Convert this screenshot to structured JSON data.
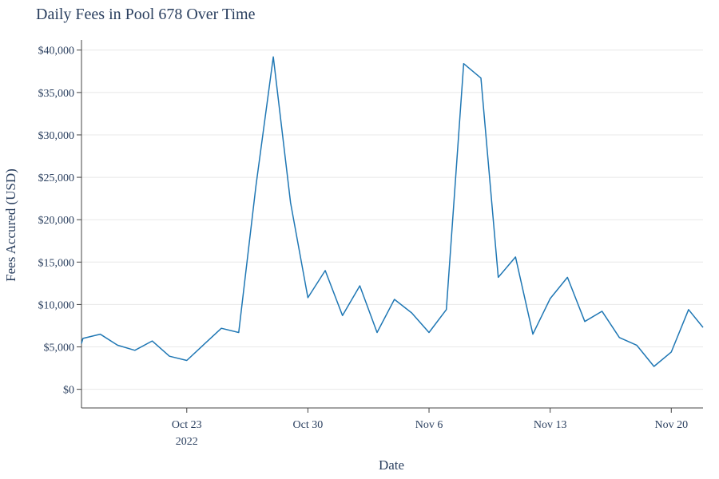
{
  "chart_data": {
    "type": "line",
    "title": "Daily Fees in Pool 678 Over Time",
    "xlabel": "Date",
    "ylabel": "Fees Accured (USD)",
    "x": [
      "2022-10-17",
      "2022-10-18",
      "2022-10-19",
      "2022-10-20",
      "2022-10-21",
      "2022-10-22",
      "2022-10-23",
      "2022-10-24",
      "2022-10-25",
      "2022-10-26",
      "2022-10-27",
      "2022-10-28",
      "2022-10-29",
      "2022-10-30",
      "2022-10-31",
      "2022-11-01",
      "2022-11-02",
      "2022-11-03",
      "2022-11-04",
      "2022-11-05",
      "2022-11-06",
      "2022-11-07",
      "2022-11-08",
      "2022-11-09",
      "2022-11-10",
      "2022-11-11",
      "2022-11-12",
      "2022-11-13",
      "2022-11-14",
      "2022-11-15",
      "2022-11-16",
      "2022-11-17",
      "2022-11-18",
      "2022-11-19",
      "2022-11-20",
      "2022-11-21"
    ],
    "series": [
      {
        "name": "",
        "values": [
          6000,
          6500,
          5200,
          4600,
          5700,
          3900,
          3400,
          5300,
          7200,
          6700,
          24000,
          39200,
          22000,
          10800,
          14000,
          8700,
          12200,
          6700,
          10600,
          9000,
          6700,
          9400,
          38400,
          36700,
          13200,
          15600,
          6500,
          10700,
          13200,
          8000,
          9200,
          6100,
          5200,
          2700,
          4400,
          9400
        ]
      }
    ],
    "x_start": "2022-10-16",
    "x_start_value": 5400,
    "x_end": "2022-11-21",
    "x_end_value": 7300,
    "x_range": [
      "2022-10-16T22:00",
      "2022-11-21T20:00"
    ],
    "ylim": [
      -2200,
      41200
    ],
    "xticks": [
      {
        "date": "2022-10-23",
        "label": "Oct 23",
        "sublabel": "2022"
      },
      {
        "date": "2022-10-30",
        "label": "Oct 30",
        "sublabel": ""
      },
      {
        "date": "2022-11-06",
        "label": "Nov 6",
        "sublabel": ""
      },
      {
        "date": "2022-11-13",
        "label": "Nov 13",
        "sublabel": ""
      },
      {
        "date": "2022-11-20",
        "label": "Nov 20",
        "sublabel": ""
      }
    ],
    "yticks": [
      {
        "value": 0,
        "label": "$0"
      },
      {
        "value": 5000,
        "label": "$5,000"
      },
      {
        "value": 10000,
        "label": "$10,000"
      },
      {
        "value": 15000,
        "label": "$15,000"
      },
      {
        "value": 20000,
        "label": "$20,000"
      },
      {
        "value": 25000,
        "label": "$25,000"
      },
      {
        "value": 30000,
        "label": "$30,000"
      },
      {
        "value": 35000,
        "label": "$35,000"
      },
      {
        "value": 40000,
        "label": "$40,000"
      }
    ],
    "grid": true,
    "legend": "none",
    "line_color": "#1f77b4"
  }
}
